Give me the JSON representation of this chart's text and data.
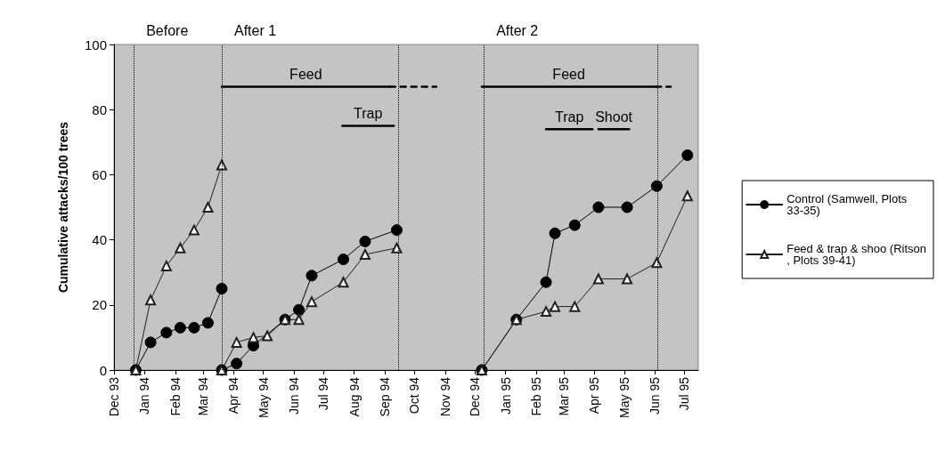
{
  "chart_data": {
    "type": "line",
    "ylabel": "Cumulative attacks/100 trees",
    "xlim": [
      "1993-12-01",
      "1995-07-15"
    ],
    "xticks": [
      {
        "value": "1993-12-01",
        "label": "Dec 93"
      },
      {
        "value": "1994-01-01",
        "label": "Jan 94"
      },
      {
        "value": "1994-02-01",
        "label": "Feb 94"
      },
      {
        "value": "1994-03-01",
        "label": "Mar 94"
      },
      {
        "value": "1994-04-01",
        "label": "Apr 94"
      },
      {
        "value": "1994-05-01",
        "label": "May 94"
      },
      {
        "value": "1994-06-01",
        "label": "Jun 94"
      },
      {
        "value": "1994-07-01",
        "label": "Jul 94"
      },
      {
        "value": "1994-08-01",
        "label": "Aug 94"
      },
      {
        "value": "1994-09-01",
        "label": "Sep 94"
      },
      {
        "value": "1994-10-01",
        "label": "Oct 94"
      },
      {
        "value": "1994-11-01",
        "label": "Nov 94"
      },
      {
        "value": "1994-12-01",
        "label": "Dec 94"
      },
      {
        "value": "1995-01-01",
        "label": "Jan 95"
      },
      {
        "value": "1995-02-01",
        "label": "Feb 95"
      },
      {
        "value": "1995-03-01",
        "label": "Mar 95"
      },
      {
        "value": "1995-04-01",
        "label": "Apr 95"
      },
      {
        "value": "1995-05-01",
        "label": "May 95"
      },
      {
        "value": "1995-06-01",
        "label": "Jun 95"
      },
      {
        "value": "1995-07-01",
        "label": "Jul 95"
      }
    ],
    "ylim": [
      0,
      100
    ],
    "yticks": [
      0,
      20,
      40,
      60,
      80,
      100
    ],
    "grid": false,
    "legend": "right",
    "series": [
      {
        "name": "Control (Samwell, Plots 33-35)",
        "color": "#000000",
        "marker": "circle",
        "x": [
          "1993-12-23",
          "1994-01-07",
          "1994-01-23",
          "1994-02-06",
          "1994-02-20",
          "1994-03-06",
          "1994-03-20",
          null,
          "1994-03-20",
          "1994-04-04",
          "1994-04-21",
          "1994-05-23",
          "1994-06-06",
          "1994-06-19",
          "1994-07-21",
          "1994-08-12",
          "1994-09-13",
          null,
          "1994-12-08",
          "1995-01-12",
          "1995-02-11",
          "1995-02-20",
          "1995-03-12",
          "1995-04-05",
          "1995-05-04",
          "1995-06-03",
          "1995-07-04"
        ],
        "values": [
          0,
          8.5,
          11.5,
          13,
          13,
          14.5,
          25,
          null,
          0,
          2,
          7.5,
          15.5,
          18.5,
          29,
          34,
          39.5,
          43,
          null,
          0,
          15.5,
          27,
          42,
          44.5,
          50,
          50,
          56.5,
          66
        ]
      },
      {
        "name": "Feed & trap & shoo (Ritson, Plots 39-41)",
        "color": "#202020",
        "marker": "triangle",
        "x": [
          "1993-12-23",
          "1994-01-07",
          "1994-01-23",
          "1994-02-06",
          "1994-02-20",
          "1994-03-06",
          "1994-03-20",
          null,
          "1994-03-20",
          "1994-04-04",
          "1994-04-21",
          "1994-05-05",
          "1994-05-23",
          "1994-06-06",
          "1994-06-19",
          "1994-07-21",
          "1994-08-12",
          "1994-09-13",
          null,
          "1994-12-08",
          "1995-01-12",
          "1995-02-11",
          "1995-02-20",
          "1995-03-12",
          "1995-04-05",
          "1995-05-04",
          "1995-06-03",
          "1995-07-04"
        ],
        "values": [
          0,
          21.5,
          32,
          37.5,
          43,
          50,
          63,
          null,
          0,
          8.5,
          10,
          10.5,
          15.5,
          15.5,
          21,
          27,
          35.5,
          37.5,
          null,
          0,
          15.5,
          18,
          19.5,
          19.5,
          28,
          28,
          33,
          53.5
        ]
      },
      {
        "name": "Feed",
        "color": "#000000",
        "marker": "none",
        "x": [
          "1994-03-20",
          "1994-09-06"
        ],
        "values": [
          87,
          87
        ]
      },
      {
        "color": "#000000",
        "marker": "none",
        "line_style": "dashed",
        "x": [
          "1994-09-06",
          "1994-10-23"
        ],
        "values": [
          87,
          87
        ]
      },
      {
        "name": "Trap",
        "color": "#000000",
        "marker": "none",
        "x": [
          "1994-07-20",
          "1994-09-10"
        ],
        "values": [
          75,
          75
        ]
      },
      {
        "name": "Feed",
        "color": "#000000",
        "marker": "none",
        "x": [
          "1994-12-08",
          "1995-06-02"
        ],
        "values": [
          87,
          87
        ]
      },
      {
        "color": "#000000",
        "marker": "none",
        "line_style": "dashed",
        "x": [
          "1995-06-02",
          "1995-06-17"
        ],
        "values": [
          87,
          87
        ]
      },
      {
        "name": "Trap",
        "color": "#000000",
        "marker": "none",
        "x": [
          "1995-02-11",
          "1995-03-30"
        ],
        "values": [
          74,
          74
        ]
      },
      {
        "name": "Shoot",
        "color": "#000000",
        "marker": "none",
        "x": [
          "1995-04-05",
          "1995-05-06"
        ],
        "values": [
          74,
          74
        ]
      }
    ],
    "ref_lines": [
      {
        "axis": "x",
        "value": "1993-12-21",
        "label": "Before",
        "line_style": "dotted"
      },
      {
        "axis": "x",
        "value": "1994-03-20",
        "label": "After 1",
        "line_style": "dotted"
      },
      {
        "axis": "x",
        "value": "1994-09-15",
        "line_style": "dotted"
      },
      {
        "axis": "x",
        "value": "1994-12-10",
        "label": "After 2",
        "line_style": "dotted"
      },
      {
        "axis": "x",
        "value": "1995-06-04",
        "line_style": "dotted"
      }
    ]
  }
}
